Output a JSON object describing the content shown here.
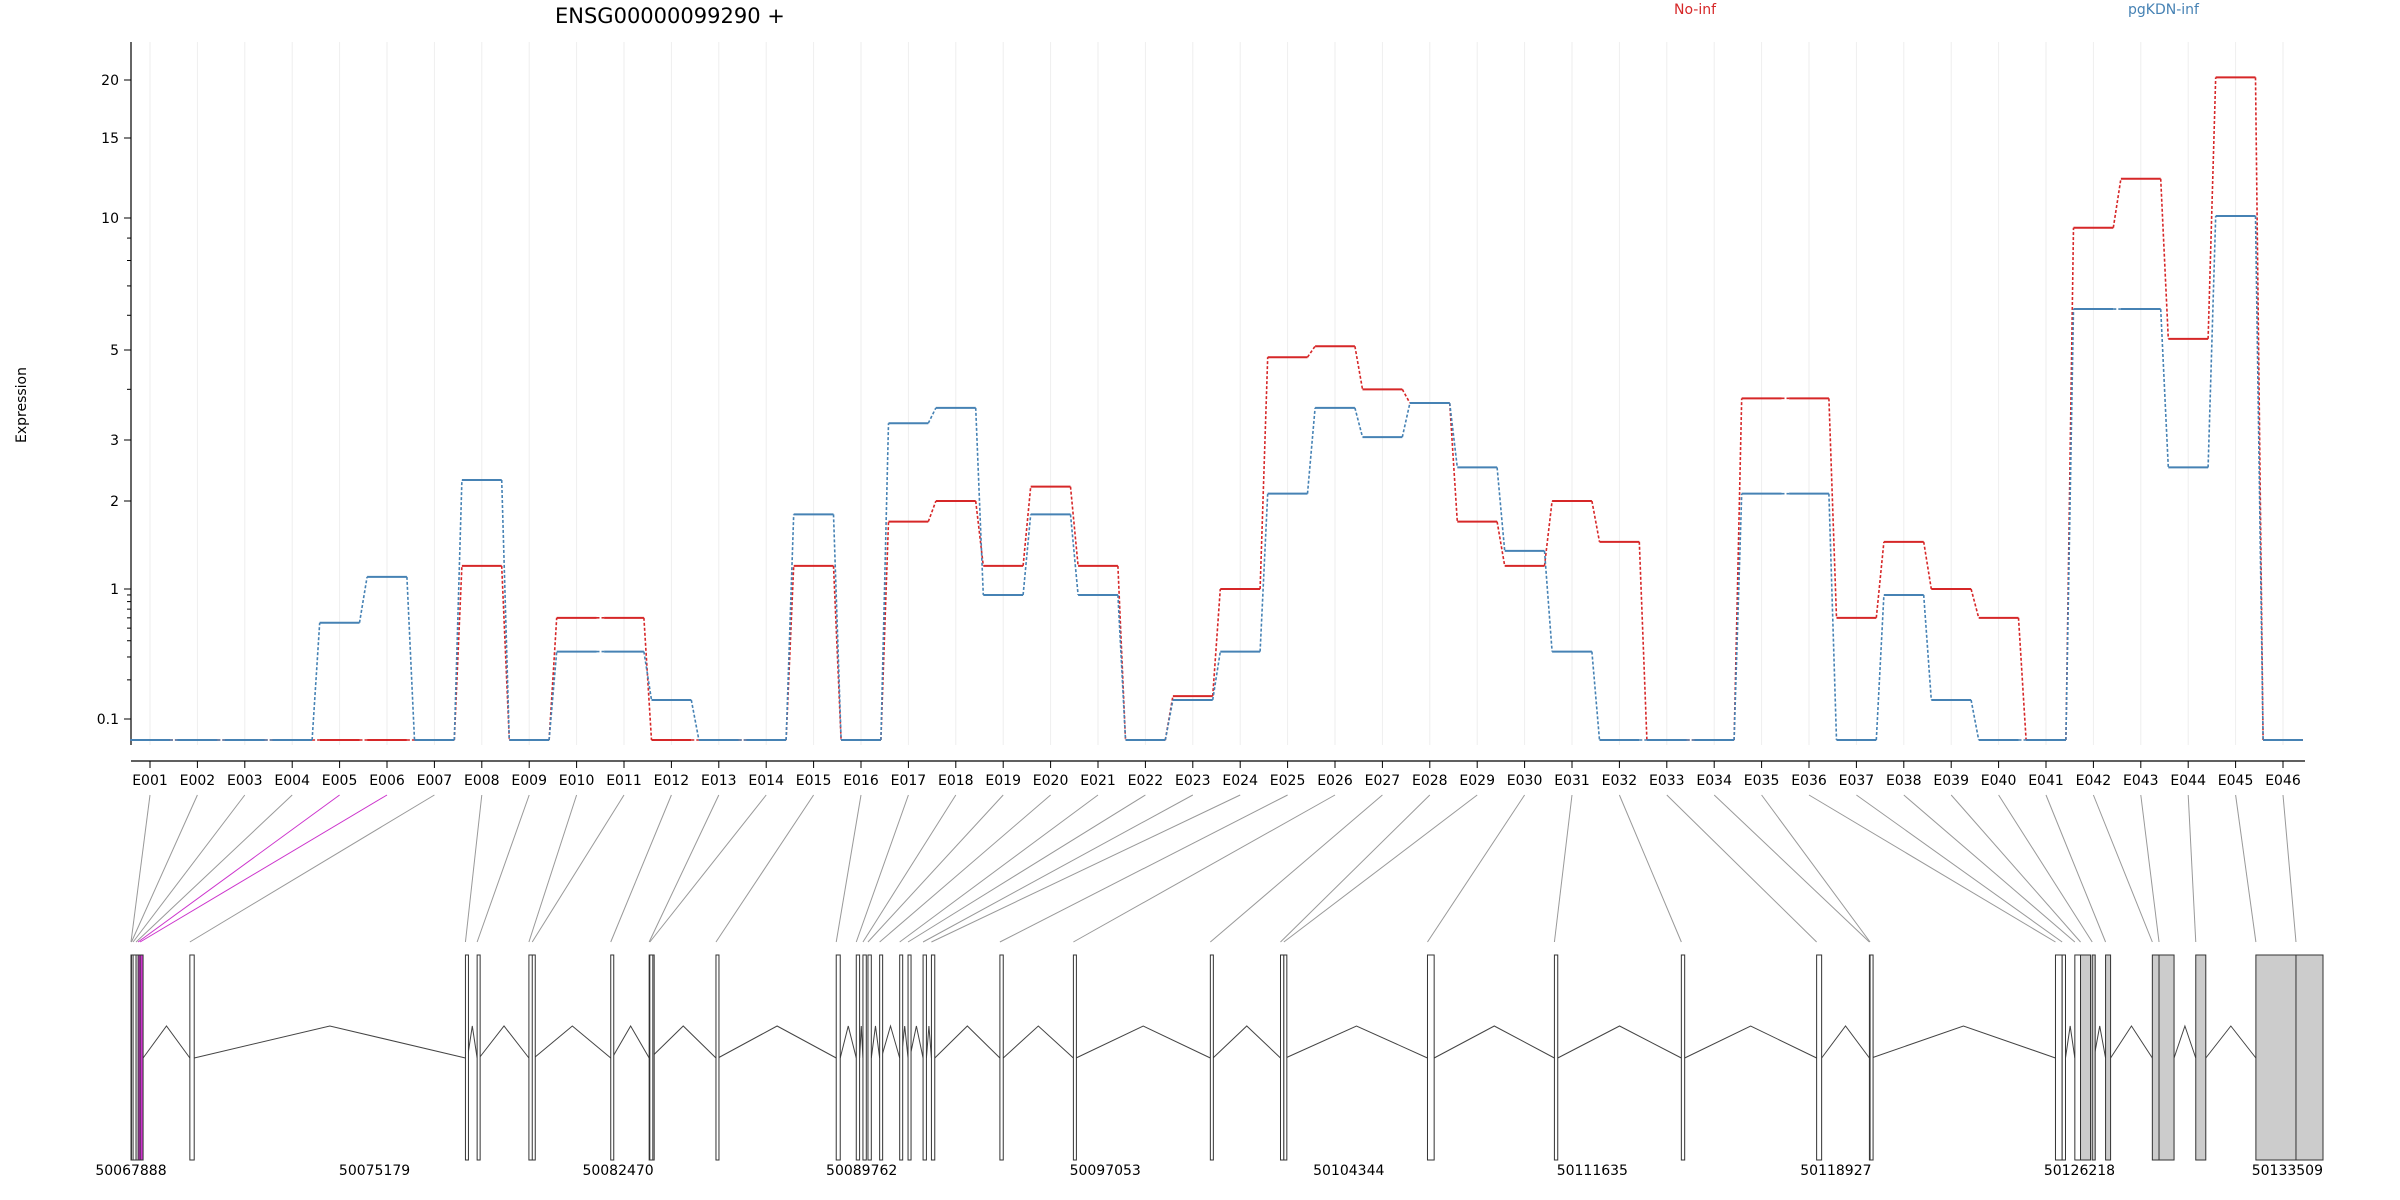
{
  "chart_data": {
    "type": "line",
    "title": "ENSG00000099290 +",
    "ylabel": "Expression",
    "xlabel": "",
    "y_scale": "log",
    "y_ticks": [
      0.1,
      1,
      2,
      3,
      5,
      10,
      15,
      20
    ],
    "y_tick_labels": [
      "0.1",
      "1",
      "2",
      "3",
      "5",
      "10",
      "15",
      "20"
    ],
    "legend_placement": "top",
    "grid": "vertical, light",
    "categories": [
      "E001",
      "E002",
      "E003",
      "E004",
      "E005",
      "E006",
      "E007",
      "E008",
      "E009",
      "E010",
      "E011",
      "E012",
      "E013",
      "E014",
      "E015",
      "E016",
      "E017",
      "E018",
      "E019",
      "E020",
      "E021",
      "E022",
      "E023",
      "E024",
      "E025",
      "E026",
      "E027",
      "E028",
      "E029",
      "E030",
      "E031",
      "E032",
      "E033",
      "E034",
      "E035",
      "E036",
      "E037",
      "E038",
      "E039",
      "E040",
      "E041",
      "E042",
      "E043",
      "E044",
      "E045",
      "E046"
    ],
    "series": [
      {
        "name": "No-inf",
        "color": "#d62728",
        "values": [
          0.08,
          0.08,
          0.08,
          0.08,
          0.08,
          0.08,
          0.08,
          1.2,
          0.08,
          0.6,
          0.6,
          0.08,
          0.08,
          0.08,
          1.2,
          0.08,
          1.7,
          2.0,
          1.2,
          2.2,
          1.2,
          0.08,
          0.15,
          1.0,
          4.8,
          5.1,
          4.0,
          3.7,
          1.7,
          1.2,
          2.0,
          1.45,
          0.08,
          0.08,
          3.8,
          3.8,
          0.6,
          1.45,
          1.0,
          0.6,
          0.08,
          9.5,
          12.2,
          5.3,
          20.5,
          0.08
        ]
      },
      {
        "name": "pgKDN-inf",
        "color": "#4682b4",
        "values": [
          0.08,
          0.08,
          0.08,
          0.08,
          0.55,
          1.1,
          0.08,
          2.3,
          0.08,
          0.33,
          0.33,
          0.14,
          0.08,
          0.08,
          1.8,
          0.08,
          3.3,
          3.6,
          0.9,
          1.8,
          0.9,
          0.08,
          0.14,
          0.33,
          2.1,
          3.6,
          3.05,
          3.7,
          2.5,
          1.35,
          0.33,
          0.08,
          0.08,
          0.08,
          2.1,
          2.1,
          0.08,
          0.9,
          0.14,
          0.08,
          0.08,
          6.2,
          6.2,
          2.5,
          10.1,
          0.08
        ]
      }
    ],
    "genomic_axis": {
      "labels": [
        "50067888",
        "50075179",
        "50082470",
        "50089762",
        "50097053",
        "50104344",
        "50111635",
        "50118927",
        "50126218",
        "50133509"
      ],
      "exon_positions": [
        50067888,
        50067902,
        50067950,
        50068040,
        50068100,
        50068160,
        50069650,
        50077900,
        50078250,
        50079800,
        50079900,
        50082250,
        50083400,
        50083420,
        50085400,
        50089000,
        50089600,
        50089800,
        50089950,
        50090300,
        50090900,
        50091150,
        50091600,
        50091850,
        50093900,
        50096100,
        50100200,
        50102300,
        50102400,
        50106700,
        50110500,
        50114300,
        50118350,
        50119930,
        50119950,
        50125500,
        50125700,
        50126080,
        50126250,
        50126600,
        50127000,
        50128400,
        50128600,
        50129700,
        50131500,
        50132700
      ],
      "exon_ends": [
        50067890,
        50067945,
        50068030,
        50068090,
        50068150,
        50068250,
        50069780,
        50077960,
        50078310,
        50079960,
        50079950,
        50082290,
        50083550,
        50083440,
        50085460,
        50089120,
        50089700,
        50089900,
        50090050,
        50090350,
        50090950,
        50091200,
        50091700,
        50091950,
        50094000,
        50096180,
        50100280,
        50102400,
        50102450,
        50106900,
        50110600,
        50114400,
        50118500,
        50120000,
        50119990,
        50125700,
        50125800,
        50126250,
        50126550,
        50126650,
        50127150,
        50129000,
        50129050,
        50130000,
        50133300,
        50133509
      ]
    }
  }
}
